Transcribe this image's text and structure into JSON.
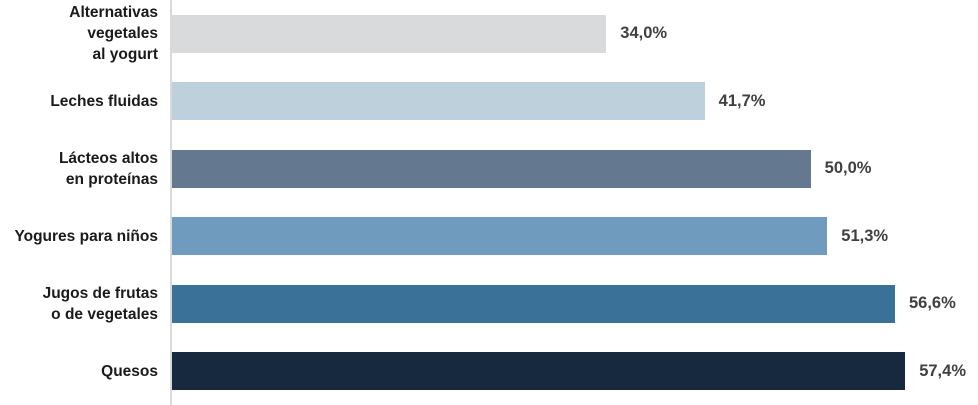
{
  "chart_data": {
    "type": "bar",
    "orientation": "horizontal",
    "title": "",
    "xlabel": "",
    "ylabel": "",
    "grid": false,
    "legend": false,
    "axis_max": 63.1,
    "categories": [
      "Alternativas vegetales al yogurt",
      "Leches fluidas",
      "Lácteos altos en proteínas",
      "Yogures para niños",
      "Jugos de frutas o de vegetales",
      "Quesos"
    ],
    "category_lines": [
      [
        "Alternativas vegetales",
        "al yogurt"
      ],
      [
        "Leches fluidas"
      ],
      [
        "Lácteos altos",
        "en proteínas"
      ],
      [
        "Yogures para niños"
      ],
      [
        "Jugos de frutas",
        "o de vegetales"
      ],
      [
        "Quesos"
      ]
    ],
    "values": [
      34.0,
      41.7,
      50.0,
      51.3,
      56.6,
      57.4
    ],
    "value_labels": [
      "34,0%",
      "41,7%",
      "50,0%",
      "51,3%",
      "56,6%",
      "57,4%"
    ],
    "bar_colors": [
      "#d9dadb",
      "#bed0dc",
      "#64788f",
      "#6f9cbe",
      "#3a7199",
      "#16293f"
    ]
  },
  "styles": {
    "background": "#ffffff",
    "axis_line_color": "#d9d9d9",
    "category_label_color": "#1a1a1a",
    "value_label_color": "#404040"
  }
}
